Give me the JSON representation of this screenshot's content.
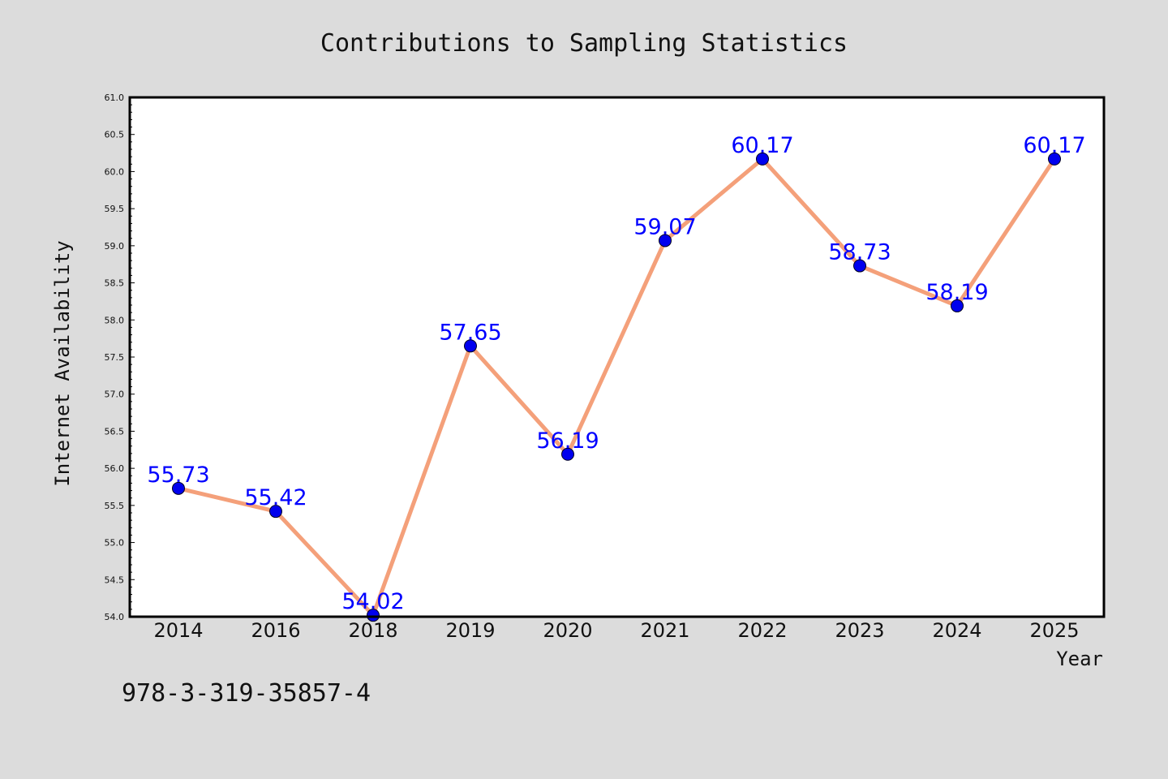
{
  "chart_data": {
    "type": "line",
    "title": "Contributions to Sampling Statistics",
    "xlabel": "Year",
    "ylabel": "Internet Availability",
    "categories": [
      "2014",
      "2016",
      "2018",
      "2019",
      "2020",
      "2021",
      "2022",
      "2023",
      "2024",
      "2025"
    ],
    "series": [
      {
        "values": [
          55.73,
          55.42,
          54.02,
          57.65,
          56.19,
          59.07,
          60.17,
          58.73,
          58.19,
          60.17
        ],
        "data_labels": [
          "55.73",
          "55.42",
          "54.02",
          "57.65",
          "56.19",
          "59.07",
          "60.17",
          "58.73",
          "58.19",
          "60.17"
        ]
      }
    ],
    "ylim": [
      54.0,
      61.0
    ],
    "yticks": [
      "54.0",
      "54.5",
      "55.0",
      "55.5",
      "56.0",
      "56.5",
      "57.0",
      "57.5",
      "58.0",
      "58.5",
      "59.0",
      "59.5",
      "60.0",
      "60.5",
      "61.0"
    ],
    "grid": false,
    "legend": "none",
    "colors": {
      "background": "#dcdcdc",
      "plot_background": "#ffffff",
      "line": "#f4a07a",
      "marker": "#0000ee",
      "data_label": "#0000ff"
    }
  },
  "footer_text": "978-3-319-35857-4"
}
